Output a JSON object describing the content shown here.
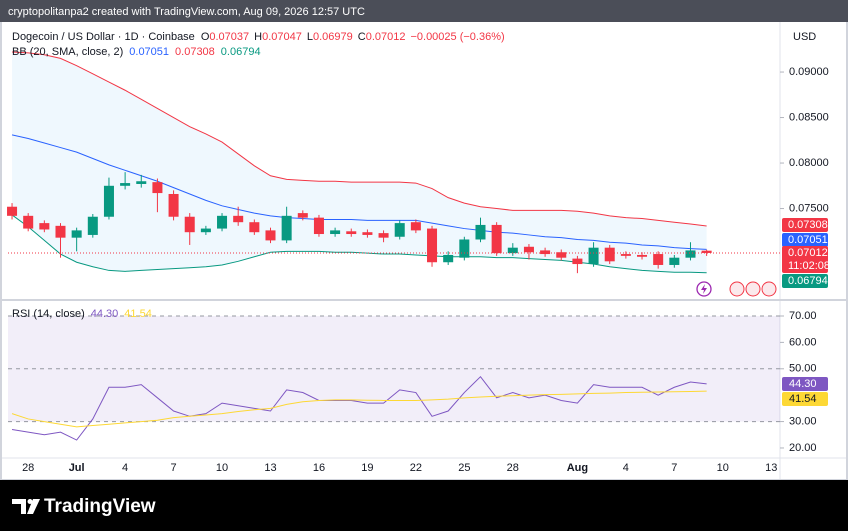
{
  "header": {
    "text": "cryptopolitanpa2 created with TradingView.com, Aug 09, 2026 12:57 UTC"
  },
  "footer": {
    "brand": "TradingView"
  },
  "chart_data": [
    {
      "type": "candlestick",
      "title": "Dogecoin / US Dollar · 1D · Coinbase",
      "currency": "USD",
      "ohlc_letters": [
        "O",
        "H",
        "L",
        "C"
      ],
      "change_label": "−0.00025 (−0.36%)",
      "indicator": "BB (20, SMA, close, 2)",
      "countdown": "11:02:08",
      "up_color": "#089981",
      "down_color": "#f23645",
      "categories": [
        "2026-06-27",
        "2026-06-28",
        "2026-06-29",
        "2026-06-30",
        "2026-07-01",
        "2026-07-02",
        "2026-07-03",
        "2026-07-04",
        "2026-07-05",
        "2026-07-06",
        "2026-07-07",
        "2026-07-08",
        "2026-07-09",
        "2026-07-10",
        "2026-07-11",
        "2026-07-12",
        "2026-07-13",
        "2026-07-14",
        "2026-07-15",
        "2026-07-16",
        "2026-07-17",
        "2026-07-18",
        "2026-07-19",
        "2026-07-20",
        "2026-07-21",
        "2026-07-22",
        "2026-07-23",
        "2026-07-24",
        "2026-07-25",
        "2026-07-26",
        "2026-07-27",
        "2026-07-28",
        "2026-07-29",
        "2026-07-30",
        "2026-07-31",
        "2026-08-01",
        "2026-08-02",
        "2026-08-03",
        "2026-08-04",
        "2026-08-05",
        "2026-08-06",
        "2026-08-07",
        "2026-08-08",
        "2026-08-09"
      ],
      "open": [
        0.0752,
        0.0742,
        0.0734,
        0.0731,
        0.0718,
        0.0721,
        0.0741,
        0.0775,
        0.0777,
        0.0779,
        0.0766,
        0.0741,
        0.0724,
        0.0728,
        0.0742,
        0.0735,
        0.0726,
        0.0715,
        0.0745,
        0.074,
        0.0722,
        0.0725,
        0.0724,
        0.0723,
        0.0719,
        0.0735,
        0.0728,
        0.0691,
        0.0696,
        0.0716,
        0.0732,
        0.0701,
        0.0708,
        0.0704,
        0.0702,
        0.0695,
        0.0689,
        0.0707,
        0.07,
        0.0699,
        0.07,
        0.0688,
        0.0696,
        0.07037
      ],
      "high": [
        0.0756,
        0.0745,
        0.0737,
        0.0734,
        0.0729,
        0.0744,
        0.0784,
        0.079,
        0.0787,
        0.0783,
        0.077,
        0.0745,
        0.0731,
        0.0745,
        0.0752,
        0.0738,
        0.0729,
        0.0752,
        0.0748,
        0.0743,
        0.0729,
        0.0728,
        0.0727,
        0.0726,
        0.0737,
        0.0738,
        0.0731,
        0.0703,
        0.0719,
        0.074,
        0.0735,
        0.0712,
        0.0711,
        0.0707,
        0.0705,
        0.0698,
        0.0713,
        0.071,
        0.0703,
        0.0702,
        0.0703,
        0.0699,
        0.0713,
        0.07047
      ],
      "low": [
        0.0738,
        0.0725,
        0.0724,
        0.0696,
        0.0703,
        0.0718,
        0.0738,
        0.0771,
        0.0773,
        0.0746,
        0.0737,
        0.071,
        0.0721,
        0.0725,
        0.0731,
        0.0721,
        0.0712,
        0.0712,
        0.0737,
        0.0719,
        0.0719,
        0.0719,
        0.0718,
        0.0713,
        0.0716,
        0.0723,
        0.0686,
        0.0688,
        0.0693,
        0.0713,
        0.0698,
        0.0698,
        0.0694,
        0.0697,
        0.0693,
        0.0679,
        0.0686,
        0.0689,
        0.0695,
        0.0694,
        0.0684,
        0.0685,
        0.0693,
        0.06979
      ],
      "close": [
        0.0742,
        0.0728,
        0.0727,
        0.0718,
        0.0726,
        0.0741,
        0.0775,
        0.0778,
        0.078,
        0.0767,
        0.0741,
        0.0724,
        0.0728,
        0.0742,
        0.0735,
        0.0724,
        0.0715,
        0.0742,
        0.074,
        0.0722,
        0.0726,
        0.0722,
        0.0721,
        0.0718,
        0.0734,
        0.0726,
        0.0691,
        0.0699,
        0.0716,
        0.0732,
        0.0701,
        0.0707,
        0.0702,
        0.07,
        0.0696,
        0.0689,
        0.0707,
        0.0692,
        0.0698,
        0.0697,
        0.0688,
        0.0696,
        0.0704,
        0.07012
      ],
      "series": [
        {
          "color": "#2962ff",
          "values": [
            0.0831,
            0.0827,
            0.0822,
            0.0817,
            0.0812,
            0.0805,
            0.0798,
            0.0792,
            0.0786,
            0.078,
            0.0773,
            0.0766,
            0.0759,
            0.0753,
            0.0749,
            0.0745,
            0.0742,
            0.074,
            0.0739,
            0.0738,
            0.0738,
            0.0738,
            0.0737,
            0.0737,
            0.0737,
            0.0737,
            0.0734,
            0.0731,
            0.0728,
            0.0726,
            0.0724,
            0.0723,
            0.0721,
            0.0719,
            0.0718,
            0.0716,
            0.0715,
            0.0713,
            0.0712,
            0.071,
            0.0709,
            0.0707,
            0.0706,
            0.07051
          ]
        },
        {
          "color": "#f23645",
          "values": [
            0.0922,
            0.0921,
            0.0919,
            0.0915,
            0.0907,
            0.0898,
            0.0889,
            0.088,
            0.087,
            0.086,
            0.085,
            0.084,
            0.0832,
            0.0823,
            0.081,
            0.0797,
            0.0786,
            0.0782,
            0.0781,
            0.078,
            0.078,
            0.0779,
            0.0779,
            0.0779,
            0.0779,
            0.0778,
            0.0772,
            0.0762,
            0.0756,
            0.0752,
            0.075,
            0.0748,
            0.0748,
            0.0748,
            0.0748,
            0.0747,
            0.0745,
            0.0742,
            0.074,
            0.0739,
            0.0737,
            0.0735,
            0.0733,
            0.07308
          ]
        },
        {
          "color": "#089981",
          "values": [
            0.0743,
            0.073,
            0.0715,
            0.07,
            0.0691,
            0.0686,
            0.0682,
            0.0681,
            0.0682,
            0.0683,
            0.0684,
            0.0685,
            0.0686,
            0.0688,
            0.0692,
            0.0697,
            0.0702,
            0.0703,
            0.0703,
            0.0703,
            0.0702,
            0.0702,
            0.0701,
            0.07,
            0.07,
            0.0699,
            0.0698,
            0.0697,
            0.0697,
            0.0697,
            0.0696,
            0.0696,
            0.0695,
            0.0694,
            0.0693,
            0.0691,
            0.0689,
            0.0686,
            0.0684,
            0.0682,
            0.0681,
            0.068,
            0.068,
            0.06794
          ]
        }
      ],
      "band_fill": "#2196f3",
      "ylim": [
        0.06517,
        0.09462
      ],
      "yticks": [
        {
          "value": 0.09,
          "label": "0.09000"
        },
        {
          "value": 0.085,
          "label": "0.08500"
        },
        {
          "value": 0.08,
          "label": "0.08000"
        },
        {
          "value": 0.075,
          "label": "0.07500"
        }
      ],
      "xlim": [
        "2026-06-26T18:00:00Z",
        "2026-08-13T13:00:00Z"
      ],
      "xticks": [
        {
          "value": "2026-06-28",
          "label": "28"
        },
        {
          "value": "2026-07-01",
          "label": "Jul"
        },
        {
          "value": "2026-07-04",
          "label": "4"
        },
        {
          "value": "2026-07-07",
          "label": "7"
        },
        {
          "value": "2026-07-10",
          "label": "10"
        },
        {
          "value": "2026-07-13",
          "label": "13"
        },
        {
          "value": "2026-07-16",
          "label": "16"
        },
        {
          "value": "2026-07-19",
          "label": "19"
        },
        {
          "value": "2026-07-22",
          "label": "22"
        },
        {
          "value": "2026-07-25",
          "label": "25"
        },
        {
          "value": "2026-07-28",
          "label": "28"
        },
        {
          "value": "2026-08-01",
          "label": "Aug"
        },
        {
          "value": "2026-08-04",
          "label": "4"
        },
        {
          "value": "2026-08-07",
          "label": "7"
        },
        {
          "value": "2026-08-10",
          "label": "10"
        },
        {
          "value": "2026-08-13",
          "label": "13"
        }
      ],
      "grid": false
    },
    {
      "type": "line",
      "indicator": "RSI (14, close)",
      "series": [
        {
          "color": "#7e57c2",
          "last_label": "44.30",
          "values": [
            27,
            26,
            25,
            26,
            23,
            31,
            43,
            43,
            44,
            39,
            34,
            32,
            33,
            37,
            36,
            35,
            34,
            42,
            41,
            38,
            38,
            38,
            37,
            37,
            42,
            41,
            32,
            34,
            41,
            47,
            39,
            41,
            39,
            40,
            38,
            37,
            44,
            43,
            43,
            43,
            40,
            43,
            45,
            44.3
          ]
        },
        {
          "color": "#fdd835",
          "last_label": "41.54",
          "values": [
            33,
            31,
            30,
            29,
            28,
            28.5,
            29,
            29.5,
            30,
            30.5,
            31.5,
            32,
            32.5,
            33,
            33.8,
            34.5,
            35,
            36.5,
            37.5,
            38,
            38.2,
            38.2,
            38.1,
            38,
            38,
            38,
            38.2,
            38.5,
            39,
            39.3,
            39.6,
            39.8,
            40,
            40.2,
            40.3,
            40.5,
            40.7,
            40.8,
            41,
            41.1,
            41.2,
            41.3,
            41.4,
            41.54
          ]
        }
      ],
      "levels": [
        70,
        50,
        30
      ],
      "band_color": "#7e57c2",
      "ylim": [
        16.2,
        75.3
      ],
      "yticks": [
        {
          "value": 70,
          "label": "70.00"
        },
        {
          "value": 60,
          "label": "60.00"
        },
        {
          "value": 50,
          "label": "50.00"
        },
        {
          "value": 30,
          "label": "30.00"
        },
        {
          "value": 20,
          "label": "20.00"
        }
      ],
      "grid": false
    }
  ]
}
